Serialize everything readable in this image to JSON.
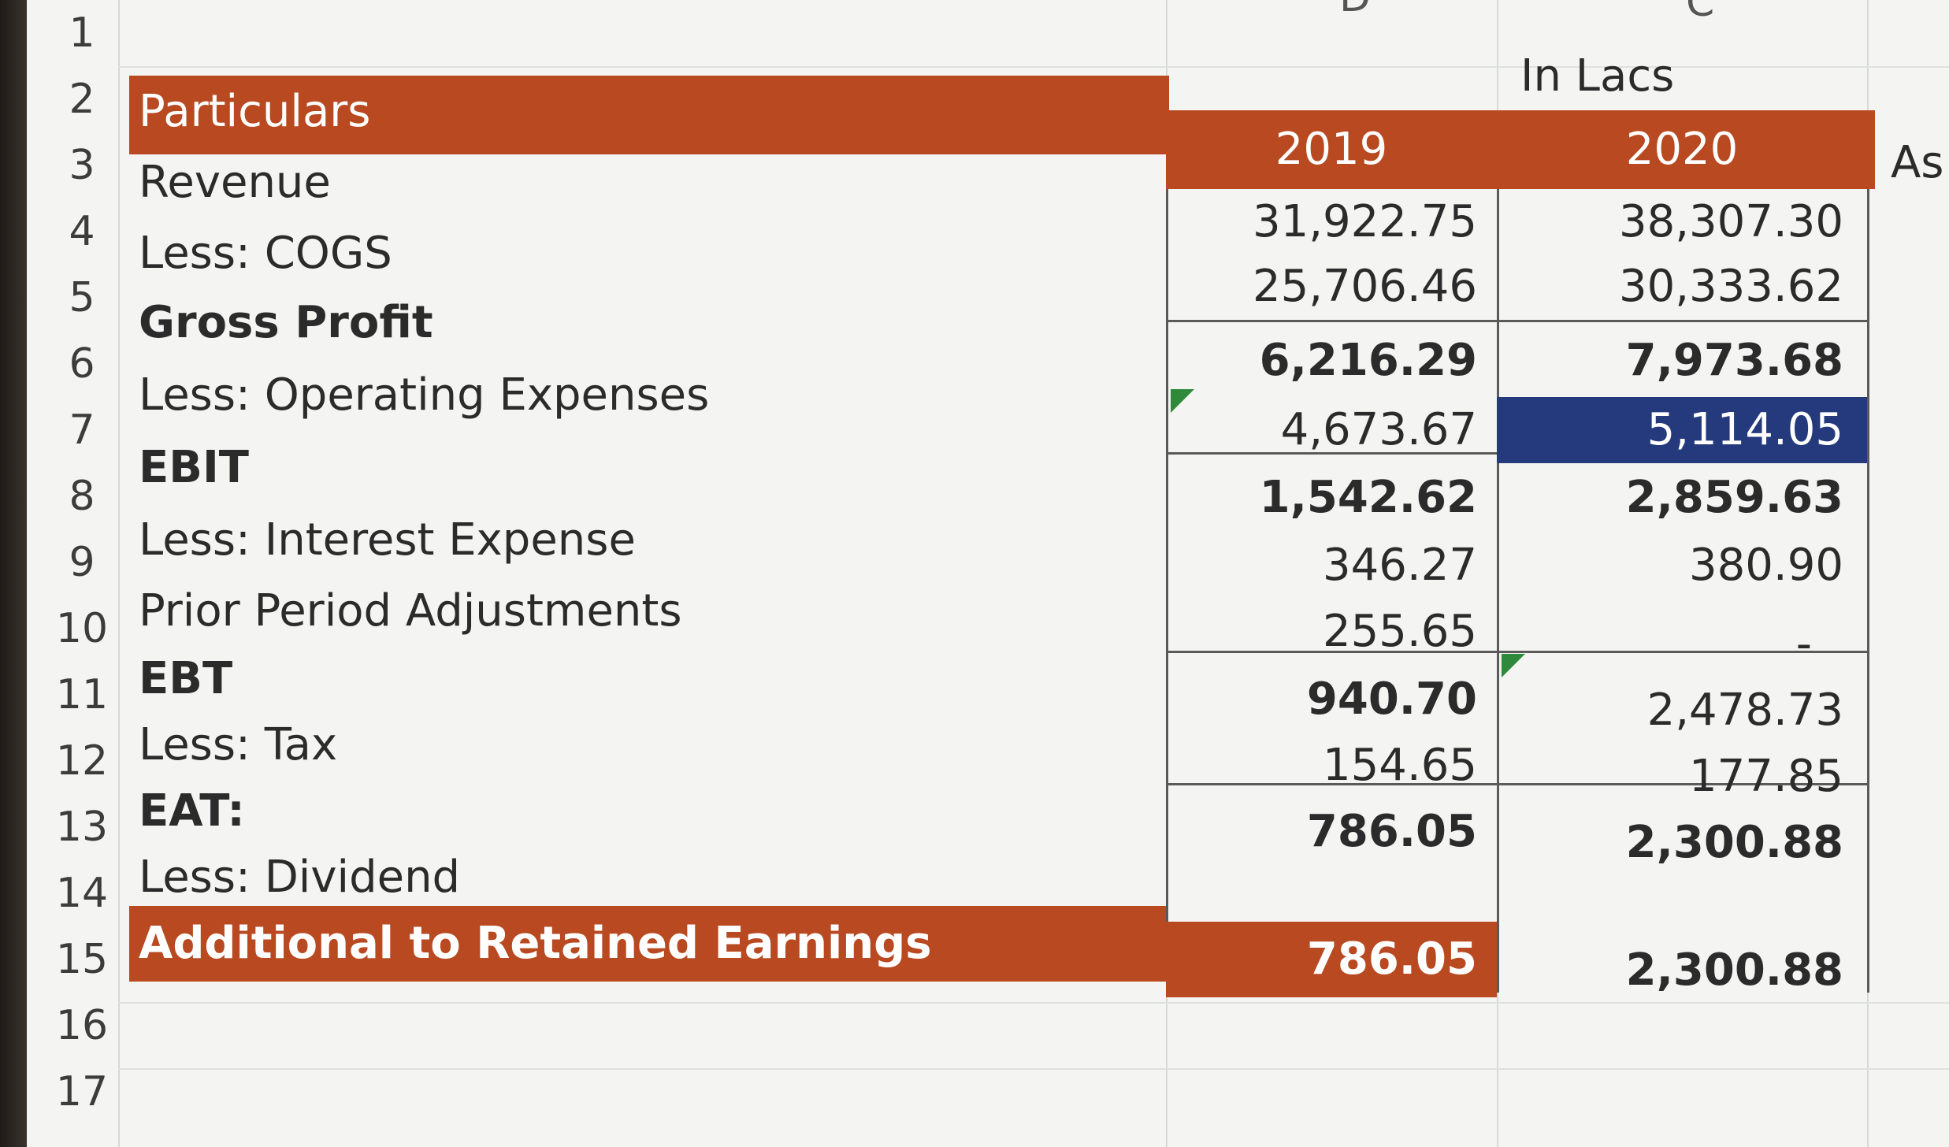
{
  "sheet": {
    "column_letters": [
      "D",
      "C"
    ],
    "unit_label": "In Lacs",
    "partial_header_right": "As",
    "row_numbers": [
      "1",
      "2",
      "3",
      "4",
      "5",
      "6",
      "7",
      "8",
      "9",
      "10",
      "11",
      "12",
      "13",
      "14",
      "15",
      "16",
      "17"
    ],
    "header": {
      "label": "Particulars",
      "y2019": "2019",
      "y2020": "2020"
    },
    "rows": [
      {
        "label": "Revenue",
        "v2019": "31,922.75",
        "v2020": "38,307.30"
      },
      {
        "label": "Less: COGS",
        "v2019": "25,706.46",
        "v2020": "30,333.62"
      },
      {
        "label": "Gross Profit",
        "v2019": "6,216.29",
        "v2020": "7,973.68"
      },
      {
        "label": "Less: Operating Expenses",
        "v2019": "4,673.67",
        "v2020": "5,114.05"
      },
      {
        "label": "EBIT",
        "v2019": "1,542.62",
        "v2020": "2,859.63"
      },
      {
        "label": "Less: Interest Expense",
        "v2019": "346.27",
        "v2020": "380.90"
      },
      {
        "label": "Prior Period Adjustments",
        "v2019": "255.65",
        "v2020": "-"
      },
      {
        "label": "EBT",
        "v2019": "940.70",
        "v2020": "2,478.73"
      },
      {
        "label": "Less: Tax",
        "v2019": "154.65",
        "v2020": "177.85"
      },
      {
        "label": "EAT:",
        "v2019": "786.05",
        "v2020": "2,300.88"
      },
      {
        "label": "Less: Dividend",
        "v2019": "",
        "v2020": ""
      },
      {
        "label": "Additional to Retained Earnings",
        "v2019": "786.05",
        "v2020": "2,300.88"
      }
    ]
  },
  "colors": {
    "header_fill": "#b84920",
    "selected_fill": "#243a7c",
    "comment_marker": "#2e8a3a"
  }
}
